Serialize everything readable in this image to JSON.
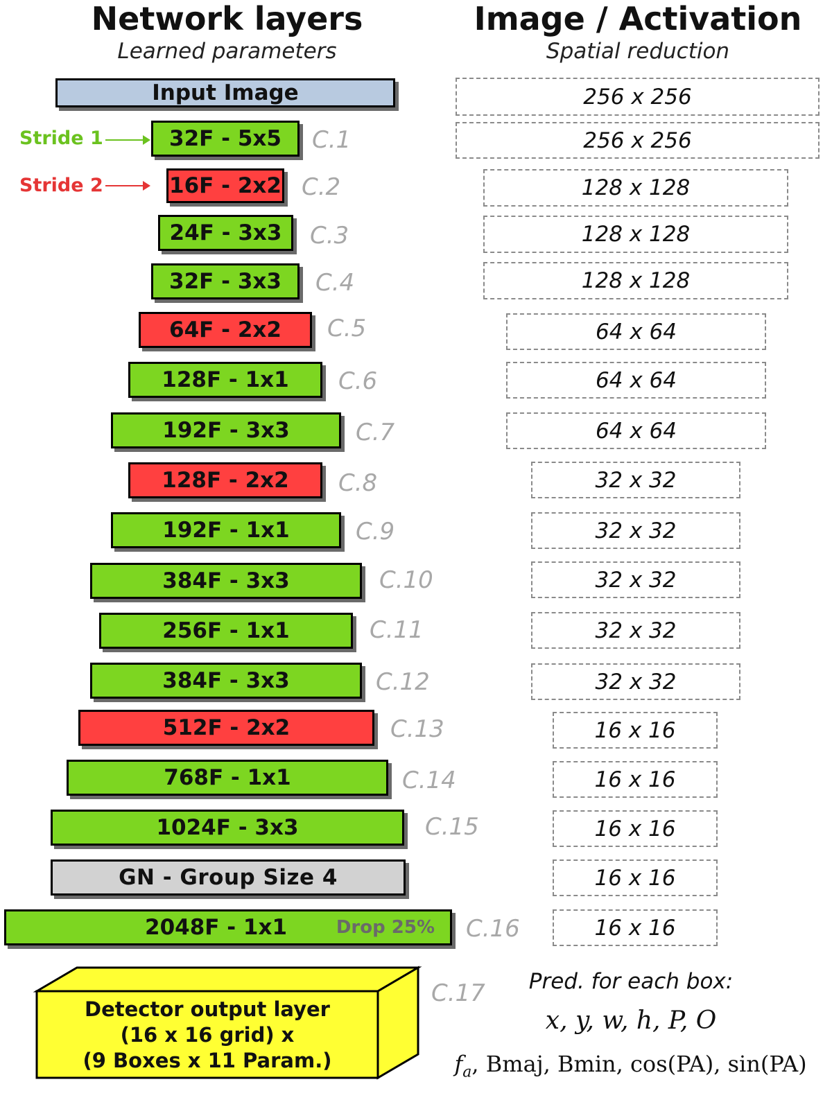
{
  "left_header": {
    "title": "Network layers",
    "subtitle": "Learned parameters"
  },
  "right_header": {
    "title": "Image / Activation",
    "subtitle": "Spatial reduction"
  },
  "colors": {
    "stride1": "#7dd621",
    "stride2": "#ff4040",
    "input": "#b8cae0",
    "norm": "#d2d2d2",
    "output": "#ffff33"
  },
  "legend": [
    {
      "label": "Stride 1",
      "color": "#6bc21f"
    },
    {
      "label": "Stride 2",
      "color": "#e53535"
    }
  ],
  "layers": [
    {
      "label": "Input Image",
      "kind": "input",
      "id": ""
    },
    {
      "label": "32F - 5x5",
      "kind": "stride1",
      "id": "C.1"
    },
    {
      "label": "16F - 2x2",
      "kind": "stride2",
      "id": "C.2"
    },
    {
      "label": "24F - 3x3",
      "kind": "stride1",
      "id": "C.3"
    },
    {
      "label": "32F - 3x3",
      "kind": "stride1",
      "id": "C.4"
    },
    {
      "label": "64F - 2x2",
      "kind": "stride2",
      "id": "C.5"
    },
    {
      "label": "128F - 1x1",
      "kind": "stride1",
      "id": "C.6"
    },
    {
      "label": "192F - 3x3",
      "kind": "stride1",
      "id": "C.7"
    },
    {
      "label": "128F - 2x2",
      "kind": "stride2",
      "id": "C.8"
    },
    {
      "label": "192F - 1x1",
      "kind": "stride1",
      "id": "C.9"
    },
    {
      "label": "384F - 3x3",
      "kind": "stride1",
      "id": "C.10"
    },
    {
      "label": "256F - 1x1",
      "kind": "stride1",
      "id": "C.11"
    },
    {
      "label": "384F - 3x3",
      "kind": "stride1",
      "id": "C.12"
    },
    {
      "label": "512F - 2x2",
      "kind": "stride2",
      "id": "C.13"
    },
    {
      "label": "768F - 1x1",
      "kind": "stride1",
      "id": "C.14"
    },
    {
      "label": "1024F - 3x3",
      "kind": "stride1",
      "id": "C.15"
    },
    {
      "label": "GN - Group Size 4",
      "kind": "norm",
      "id": ""
    },
    {
      "label": "2048F - 1x1",
      "kind": "stride1",
      "id": "C.16",
      "note": "Drop 25%"
    }
  ],
  "activations": [
    "256 x 256",
    "256 x 256",
    "128 x 128",
    "128 x 128",
    "128 x 128",
    "64 x 64",
    "64 x 64",
    "64 x 64",
    "32 x 32",
    "32 x 32",
    "32 x 32",
    "32 x 32",
    "32 x 32",
    "16 x 16",
    "16 x 16",
    "16 x 16",
    "16 x 16",
    "16 x 16"
  ],
  "output_layer": {
    "lines": [
      "Detector output layer",
      "(16 x 16 grid) x",
      "(9 Boxes x 11 Param.)"
    ],
    "id": "C.17"
  },
  "predictions": {
    "title": "Pred. for each box:",
    "line1": "x, y, w, h, P, O",
    "line2_pre": "f",
    "line2_sub": "a",
    "line2_post": ", Bmaj, Bmin, cos(PA), sin(PA)"
  }
}
